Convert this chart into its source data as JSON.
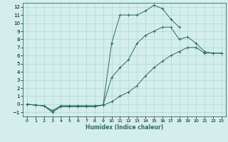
{
  "xlabel": "Humidex (Indice chaleur)",
  "x_values": [
    0,
    1,
    2,
    3,
    4,
    5,
    6,
    7,
    8,
    9,
    10,
    11,
    12,
    13,
    14,
    15,
    16,
    17,
    18,
    19,
    20,
    21,
    22,
    23
  ],
  "curve_top": [
    0.0,
    -0.1,
    -0.2,
    -0.8,
    -0.2,
    -0.2,
    -0.2,
    -0.2,
    -0.2,
    -0.1,
    7.5,
    11.0,
    11.0,
    11.0,
    11.5,
    12.2,
    11.8,
    10.5,
    9.5,
    null,
    null,
    null,
    null,
    null
  ],
  "curve_mid": [
    0.0,
    -0.1,
    -0.2,
    -0.8,
    -0.2,
    -0.2,
    -0.2,
    -0.2,
    -0.2,
    -0.1,
    3.3,
    4.5,
    5.5,
    7.5,
    8.5,
    9.0,
    9.5,
    9.5,
    8.0,
    8.3,
    7.5,
    6.5,
    6.3,
    6.3
  ],
  "curve_bot": [
    0.0,
    -0.1,
    -0.2,
    -1.0,
    -0.3,
    -0.3,
    -0.3,
    -0.3,
    -0.3,
    -0.1,
    0.3,
    1.0,
    1.5,
    2.3,
    3.5,
    4.5,
    5.3,
    6.0,
    6.5,
    7.0,
    7.0,
    6.3,
    6.3,
    6.3
  ],
  "line_color": "#2d6b5e",
  "bg_color": "#d4eeeb",
  "grid_color": "#b0d8d4",
  "ylim": [
    -1.5,
    12.5
  ],
  "xlim": [
    -0.5,
    23.5
  ],
  "yticks": [
    -1,
    0,
    1,
    2,
    3,
    4,
    5,
    6,
    7,
    8,
    9,
    10,
    11,
    12
  ],
  "xticks": [
    0,
    1,
    2,
    3,
    4,
    5,
    6,
    7,
    8,
    9,
    10,
    11,
    12,
    13,
    14,
    15,
    16,
    17,
    18,
    19,
    20,
    21,
    22,
    23
  ]
}
